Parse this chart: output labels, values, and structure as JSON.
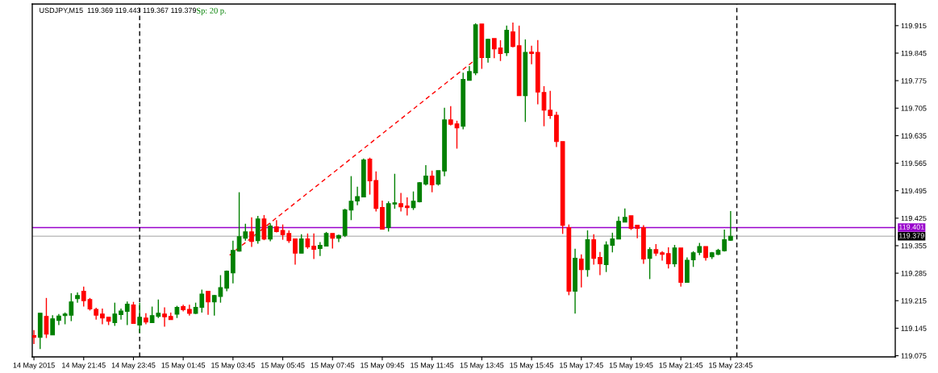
{
  "chart_data": {
    "type": "candlestick",
    "title": "USDJPY,M15  119.369 119.443 119.367 119.379",
    "annotations": [
      "Sp: 20 p."
    ],
    "x": [
      "2015-05-14T19:45",
      "2015-05-14T20:00",
      "2015-05-14T20:15",
      "2015-05-14T20:30",
      "2015-05-14T20:45",
      "2015-05-14T21:00",
      "2015-05-14T21:15",
      "2015-05-14T21:30",
      "2015-05-14T21:45",
      "2015-05-14T22:00",
      "2015-05-14T22:15",
      "2015-05-14T22:30",
      "2015-05-14T22:45",
      "2015-05-14T23:00",
      "2015-05-14T23:15",
      "2015-05-14T23:30",
      "2015-05-14T23:45",
      "2015-05-15T00:00",
      "2015-05-15T00:15",
      "2015-05-15T00:30",
      "2015-05-15T00:45",
      "2015-05-15T01:00",
      "2015-05-15T01:15",
      "2015-05-15T01:30",
      "2015-05-15T01:45",
      "2015-05-15T02:00",
      "2015-05-15T02:15",
      "2015-05-15T02:30",
      "2015-05-15T02:45",
      "2015-05-15T03:00",
      "2015-05-15T03:15",
      "2015-05-15T03:30",
      "2015-05-15T03:45",
      "2015-05-15T04:00",
      "2015-05-15T04:15",
      "2015-05-15T04:30",
      "2015-05-15T04:45",
      "2015-05-15T05:00",
      "2015-05-15T05:15",
      "2015-05-15T05:30",
      "2015-05-15T05:45",
      "2015-05-15T06:00",
      "2015-05-15T06:15",
      "2015-05-15T06:30",
      "2015-05-15T06:45",
      "2015-05-15T07:00",
      "2015-05-15T07:15",
      "2015-05-15T07:30",
      "2015-05-15T07:45",
      "2015-05-15T08:00",
      "2015-05-15T08:15",
      "2015-05-15T08:30",
      "2015-05-15T08:45",
      "2015-05-15T09:00",
      "2015-05-15T09:15",
      "2015-05-15T09:30",
      "2015-05-15T09:45",
      "2015-05-15T10:00",
      "2015-05-15T10:15",
      "2015-05-15T10:30",
      "2015-05-15T10:45",
      "2015-05-15T11:00",
      "2015-05-15T11:15",
      "2015-05-15T11:30",
      "2015-05-15T11:45",
      "2015-05-15T12:00",
      "2015-05-15T12:15",
      "2015-05-15T12:30",
      "2015-05-15T12:45",
      "2015-05-15T13:00",
      "2015-05-15T13:15",
      "2015-05-15T13:30",
      "2015-05-15T13:45",
      "2015-05-15T14:00",
      "2015-05-15T14:15",
      "2015-05-15T14:30",
      "2015-05-15T14:45",
      "2015-05-15T15:00",
      "2015-05-15T15:15",
      "2015-05-15T15:30",
      "2015-05-15T15:45",
      "2015-05-15T16:00",
      "2015-05-15T16:15",
      "2015-05-15T16:30",
      "2015-05-15T16:45",
      "2015-05-15T17:00",
      "2015-05-15T17:15",
      "2015-05-15T17:30",
      "2015-05-15T17:45",
      "2015-05-15T18:00",
      "2015-05-15T18:15",
      "2015-05-15T18:30",
      "2015-05-15T18:45",
      "2015-05-15T19:00",
      "2015-05-15T19:15",
      "2015-05-15T19:30",
      "2015-05-15T19:45",
      "2015-05-15T20:00",
      "2015-05-15T20:15",
      "2015-05-15T20:30",
      "2015-05-15T20:45",
      "2015-05-15T21:00",
      "2015-05-15T21:15",
      "2015-05-15T21:30",
      "2015-05-15T21:45",
      "2015-05-15T22:00",
      "2015-05-15T22:15",
      "2015-05-15T22:30",
      "2015-05-15T22:45",
      "2015-05-15T23:00",
      "2015-05-15T23:15",
      "2015-05-15T23:30",
      "2015-05-15T23:45"
    ],
    "ohlc": [
      [
        119.126,
        119.14,
        119.105,
        119.122
      ],
      [
        119.122,
        119.183,
        119.092,
        119.183
      ],
      [
        119.175,
        119.222,
        119.12,
        119.13
      ],
      [
        119.128,
        119.178,
        119.128,
        119.169
      ],
      [
        119.165,
        119.181,
        119.153,
        119.176
      ],
      [
        119.177,
        119.185,
        119.155,
        119.181
      ],
      [
        119.178,
        119.234,
        119.163,
        119.212
      ],
      [
        119.22,
        119.236,
        119.21,
        119.228
      ],
      [
        119.239,
        119.251,
        119.2,
        119.215
      ],
      [
        119.218,
        119.222,
        119.19,
        119.194
      ],
      [
        119.193,
        119.197,
        119.167,
        119.178
      ],
      [
        119.181,
        119.195,
        119.155,
        119.171
      ],
      [
        119.173,
        119.173,
        119.153,
        119.163
      ],
      [
        119.159,
        119.21,
        119.151,
        119.181
      ],
      [
        119.18,
        119.195,
        119.167,
        119.189
      ],
      [
        119.188,
        119.213,
        119.153,
        119.206
      ],
      [
        119.204,
        119.212,
        119.157,
        119.157
      ],
      [
        119.153,
        119.21,
        119.133,
        119.173
      ],
      [
        119.171,
        119.183,
        119.155,
        119.161
      ],
      [
        119.159,
        119.2,
        119.159,
        119.177
      ],
      [
        119.175,
        119.218,
        119.171,
        119.183
      ],
      [
        119.181,
        119.198,
        119.149,
        119.174
      ],
      [
        119.175,
        119.185,
        119.167,
        119.167
      ],
      [
        119.181,
        119.202,
        119.171,
        119.198
      ],
      [
        119.2,
        119.205,
        119.188,
        119.192
      ],
      [
        119.193,
        119.205,
        119.177,
        119.183
      ],
      [
        119.183,
        119.21,
        119.181,
        119.198
      ],
      [
        119.198,
        119.243,
        119.185,
        119.232
      ],
      [
        119.239,
        119.239,
        119.179,
        119.212
      ],
      [
        119.212,
        119.23,
        119.177,
        119.228
      ],
      [
        119.226,
        119.28,
        119.21,
        119.248
      ],
      [
        119.247,
        119.292,
        119.239,
        119.29
      ],
      [
        119.286,
        119.368,
        119.259,
        119.343
      ],
      [
        119.341,
        119.491,
        119.34,
        119.378
      ],
      [
        119.374,
        119.411,
        119.368,
        119.39
      ],
      [
        119.39,
        119.427,
        119.352,
        119.366
      ],
      [
        119.368,
        119.431,
        119.36,
        119.423
      ],
      [
        119.423,
        119.433,
        119.369,
        119.372
      ],
      [
        119.372,
        119.412,
        119.366,
        119.405
      ],
      [
        119.403,
        119.42,
        119.389,
        119.391
      ],
      [
        119.394,
        119.409,
        119.37,
        119.383
      ],
      [
        119.386,
        119.394,
        119.362,
        119.368
      ],
      [
        119.372,
        119.372,
        119.307,
        119.336
      ],
      [
        119.336,
        119.384,
        119.336,
        119.372
      ],
      [
        119.372,
        119.386,
        119.347,
        119.352
      ],
      [
        119.354,
        119.386,
        119.321,
        119.346
      ],
      [
        119.348,
        119.364,
        119.329,
        119.356
      ],
      [
        119.354,
        119.39,
        119.354,
        119.386
      ],
      [
        119.386,
        119.386,
        119.348,
        119.374
      ],
      [
        119.374,
        119.383,
        119.364,
        119.381
      ],
      [
        119.381,
        119.449,
        119.377,
        119.446
      ],
      [
        119.446,
        119.532,
        119.42,
        119.468
      ],
      [
        119.469,
        119.505,
        119.458,
        119.48
      ],
      [
        119.479,
        119.577,
        119.479,
        119.573
      ],
      [
        119.575,
        119.579,
        119.485,
        119.52
      ],
      [
        119.521,
        119.544,
        119.442,
        119.45
      ],
      [
        119.452,
        119.47,
        119.397,
        119.397
      ],
      [
        119.401,
        119.468,
        119.391,
        119.462
      ],
      [
        119.461,
        119.538,
        119.449,
        119.464
      ],
      [
        119.462,
        119.489,
        119.442,
        119.454
      ],
      [
        119.456,
        119.478,
        119.432,
        119.452
      ],
      [
        119.452,
        119.493,
        119.446,
        119.468
      ],
      [
        119.467,
        119.517,
        119.465,
        119.515
      ],
      [
        119.512,
        119.56,
        119.508,
        119.532
      ],
      [
        119.532,
        119.546,
        119.491,
        119.51
      ],
      [
        119.512,
        119.546,
        119.508,
        119.546
      ],
      [
        119.545,
        119.706,
        119.532,
        119.675
      ],
      [
        119.675,
        119.71,
        119.661,
        119.664
      ],
      [
        119.665,
        119.673,
        119.602,
        119.655
      ],
      [
        119.659,
        119.795,
        119.651,
        119.778
      ],
      [
        119.776,
        119.812,
        119.776,
        119.798
      ],
      [
        119.795,
        119.921,
        119.789,
        119.917
      ],
      [
        119.919,
        119.919,
        119.805,
        119.834
      ],
      [
        119.834,
        119.882,
        119.821,
        119.88
      ],
      [
        119.882,
        119.882,
        119.832,
        119.856
      ],
      [
        119.858,
        119.878,
        119.825,
        119.844
      ],
      [
        119.846,
        119.915,
        119.838,
        119.903
      ],
      [
        119.899,
        119.923,
        119.86,
        119.862
      ],
      [
        119.864,
        119.915,
        119.737,
        119.737
      ],
      [
        119.737,
        119.88,
        119.67,
        119.847
      ],
      [
        119.848,
        119.864,
        119.817,
        119.844
      ],
      [
        119.847,
        119.878,
        119.715,
        119.746
      ],
      [
        119.745,
        119.761,
        119.659,
        119.7
      ],
      [
        119.7,
        119.749,
        119.678,
        119.686
      ],
      [
        119.687,
        119.696,
        119.606,
        119.62
      ],
      [
        119.62,
        119.62,
        119.385,
        119.407
      ],
      [
        119.401,
        119.409,
        119.229,
        119.239
      ],
      [
        119.239,
        119.347,
        119.182,
        119.323
      ],
      [
        119.321,
        119.333,
        119.249,
        119.294
      ],
      [
        119.294,
        119.394,
        119.276,
        119.37
      ],
      [
        119.37,
        119.384,
        119.307,
        119.323
      ],
      [
        119.325,
        119.339,
        119.28,
        119.309
      ],
      [
        119.307,
        119.366,
        119.288,
        119.357
      ],
      [
        119.356,
        119.388,
        119.338,
        119.372
      ],
      [
        119.372,
        119.429,
        119.372,
        119.417
      ],
      [
        119.415,
        119.45,
        119.415,
        119.427
      ],
      [
        119.431,
        119.431,
        119.395,
        119.399
      ],
      [
        119.407,
        119.407,
        119.374,
        119.399
      ],
      [
        119.401,
        119.407,
        119.309,
        119.321
      ],
      [
        119.323,
        119.351,
        119.27,
        119.345
      ],
      [
        119.345,
        119.359,
        119.329,
        119.336
      ],
      [
        119.337,
        119.341,
        119.317,
        119.333
      ],
      [
        119.335,
        119.351,
        119.297,
        119.309
      ],
      [
        119.309,
        119.357,
        119.301,
        119.349
      ],
      [
        119.349,
        119.349,
        119.251,
        119.262
      ],
      [
        119.262,
        119.325,
        119.262,
        119.318
      ],
      [
        119.319,
        119.341,
        119.301,
        119.337
      ],
      [
        119.338,
        119.362,
        119.331,
        119.353
      ],
      [
        119.353,
        119.353,
        119.317,
        119.325
      ],
      [
        119.327,
        119.339,
        119.321,
        119.337
      ],
      [
        119.333,
        119.347,
        119.331,
        119.343
      ],
      [
        119.342,
        119.396,
        119.34,
        119.37
      ],
      [
        119.369,
        119.443,
        119.367,
        119.379
      ]
    ],
    "colors": [
      "#ff0000",
      "#008000",
      "#ff0000",
      "#008000",
      "#008000",
      "#008000",
      "#008000",
      "#008000",
      "#ff0000",
      "#ff0000",
      "#ff0000",
      "#ff0000",
      "#ff0000",
      "#008000",
      "#008000",
      "#008000",
      "#ff0000",
      "#008000",
      "#ff0000",
      "#008000",
      "#008000",
      "#ff0000",
      "#ff0000",
      "#008000",
      "#ff0000",
      "#ff0000",
      "#008000",
      "#008000",
      "#ff0000",
      "#008000",
      "#008000",
      "#008000",
      "#008000",
      "#008000",
      "#008000",
      "#ff0000",
      "#008000",
      "#ff0000",
      "#008000",
      "#ff0000",
      "#ff0000",
      "#ff0000",
      "#ff0000",
      "#008000",
      "#ff0000",
      "#ff0000",
      "#008000",
      "#008000",
      "#ff0000",
      "#008000",
      "#008000",
      "#008000",
      "#008000",
      "#008000",
      "#ff0000",
      "#ff0000",
      "#ff0000",
      "#008000",
      "#008000",
      "#ff0000",
      "#ff0000",
      "#008000",
      "#008000",
      "#008000",
      "#ff0000",
      "#008000",
      "#008000",
      "#ff0000",
      "#ff0000",
      "#008000",
      "#008000",
      "#008000",
      "#ff0000",
      "#008000",
      "#ff0000",
      "#ff0000",
      "#008000",
      "#ff0000",
      "#ff0000",
      "#008000",
      "#ff0000",
      "#ff0000",
      "#ff0000",
      "#ff0000",
      "#ff0000",
      "#ff0000",
      "#ff0000",
      "#008000",
      "#ff0000",
      "#008000",
      "#ff0000",
      "#ff0000",
      "#008000",
      "#008000",
      "#008000",
      "#008000",
      "#ff0000",
      "#ff0000",
      "#ff0000",
      "#008000",
      "#ff0000",
      "#ff0000",
      "#ff0000",
      "#008000",
      "#ff0000",
      "#008000",
      "#008000",
      "#008000",
      "#ff0000",
      "#008000",
      "#008000",
      "#008000",
      "#008000"
    ],
    "series": [
      {
        "type": "line",
        "color": "#ff0000",
        "line_style": "dashed",
        "x": [
          "2015-05-15T03:37",
          "2015-05-15T13:35"
        ],
        "values": [
          119.331,
          119.833
        ]
      }
    ],
    "xlim": [
      "2015-05-14T19:41",
      "2015-05-16T06:22"
    ],
    "xticks": [
      {
        "value": "2015-05-14T19:45",
        "label": "14 May 2015"
      },
      {
        "value": "2015-05-14T21:45",
        "label": "14 May 21:45"
      },
      {
        "value": "2015-05-14T23:45",
        "label": "14 May 23:45"
      },
      {
        "value": "2015-05-15T01:45",
        "label": "15 May 01:45"
      },
      {
        "value": "2015-05-15T03:45",
        "label": "15 May 03:45"
      },
      {
        "value": "2015-05-15T05:45",
        "label": "15 May 05:45"
      },
      {
        "value": "2015-05-15T07:45",
        "label": "15 May 07:45"
      },
      {
        "value": "2015-05-15T09:45",
        "label": "15 May 09:45"
      },
      {
        "value": "2015-05-15T11:45",
        "label": "15 May 11:45"
      },
      {
        "value": "2015-05-15T13:45",
        "label": "15 May 13:45"
      },
      {
        "value": "2015-05-15T15:45",
        "label": "15 May 15:45"
      },
      {
        "value": "2015-05-15T17:45",
        "label": "15 May 17:45"
      },
      {
        "value": "2015-05-15T19:45",
        "label": "15 May 19:45"
      },
      {
        "value": "2015-05-15T21:45",
        "label": "15 May 21:45"
      },
      {
        "value": "2015-05-15T23:45",
        "label": "15 May 23:45"
      }
    ],
    "ylim": [
      119.072,
      119.97
    ],
    "yticks": [
      119.075,
      119.145,
      119.215,
      119.285,
      119.355,
      119.425,
      119.495,
      119.565,
      119.635,
      119.705,
      119.775,
      119.845,
      119.915
    ],
    "ref_lines": [
      {
        "axis": "y",
        "value": 119.401,
        "label": "119.401",
        "color": "#9900cc",
        "line_style": "solid"
      },
      {
        "axis": "y",
        "value": 119.379,
        "label": "119.379",
        "color": "#c0c0c0",
        "line_style": "solid"
      },
      {
        "axis": "x",
        "value": "2015-05-15T00:00",
        "color": "#000000",
        "line_style": "dashed"
      },
      {
        "axis": "x",
        "value": "2015-05-16T00:00",
        "color": "#000000",
        "line_style": "dashed"
      }
    ],
    "grid": false
  }
}
